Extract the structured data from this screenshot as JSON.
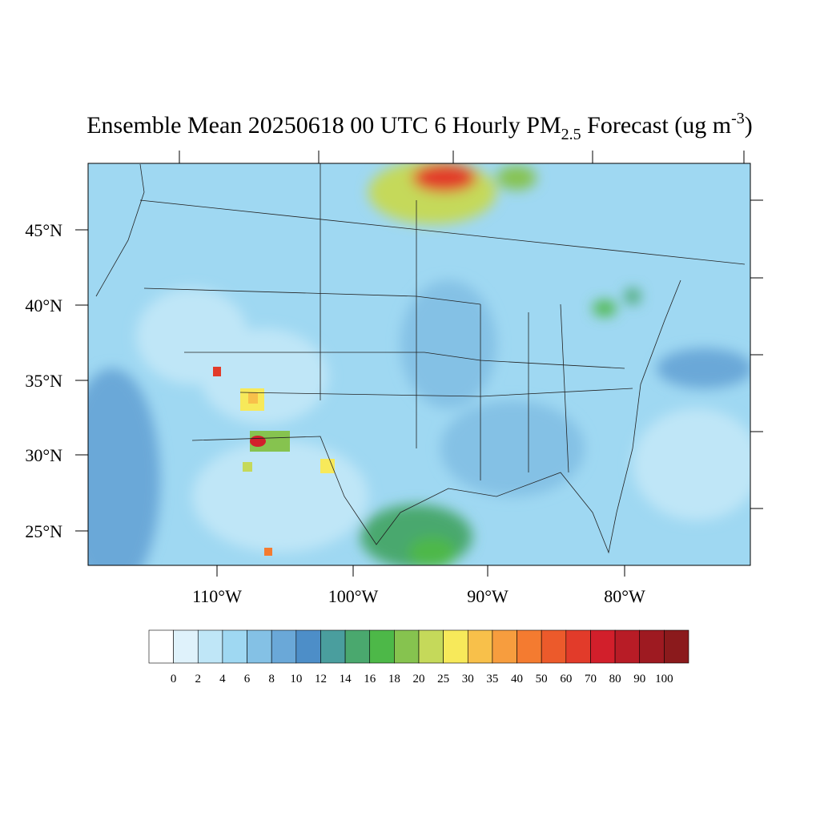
{
  "title": {
    "main": "Ensemble Mean 20250618 00 UTC 6 Hourly PM",
    "subscript": "2.5",
    "middle": " Forecast (ug m",
    "superscript": "-3",
    "end": ")"
  },
  "map": {
    "lat_labels": [
      "45°N",
      "40°N",
      "35°N",
      "30°N",
      "25°N"
    ],
    "lon_labels": [
      "110°W",
      "100°W",
      "90°W",
      "80°W"
    ]
  },
  "colorbar": {
    "levels": [
      0,
      2,
      4,
      6,
      8,
      10,
      12,
      14,
      16,
      18,
      20,
      25,
      30,
      35,
      40,
      50,
      60,
      70,
      80,
      90,
      100
    ],
    "colors": [
      "#ffffff",
      "#dff2fb",
      "#bfe6f7",
      "#9fd8f2",
      "#84c1e5",
      "#6aa8d8",
      "#4d8ec8",
      "#4a9e9e",
      "#4aa86e",
      "#4db848",
      "#86c34f",
      "#c5d95a",
      "#f7e95a",
      "#f8c04a",
      "#f79d3e",
      "#f47b30",
      "#ec5a2b",
      "#e23b2a",
      "#d21f2b",
      "#b81c26",
      "#9e1a21",
      "#8b1a1c"
    ]
  }
}
